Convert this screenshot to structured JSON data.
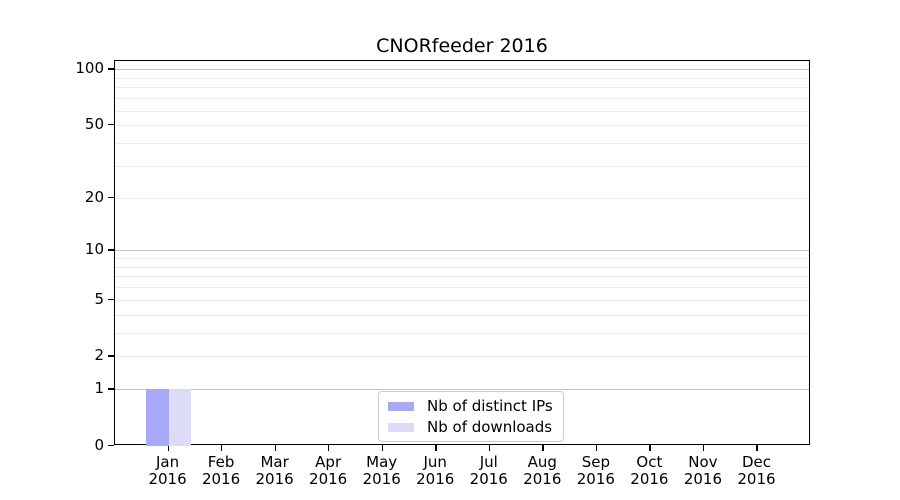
{
  "title": "CNORfeeder 2016",
  "chart_data": {
    "type": "bar",
    "title": "CNORfeeder 2016",
    "xlabel": "",
    "ylabel": "",
    "categories": [
      {
        "month": "Jan",
        "year": "2016"
      },
      {
        "month": "Feb",
        "year": "2016"
      },
      {
        "month": "Mar",
        "year": "2016"
      },
      {
        "month": "Apr",
        "year": "2016"
      },
      {
        "month": "May",
        "year": "2016"
      },
      {
        "month": "Jun",
        "year": "2016"
      },
      {
        "month": "Jul",
        "year": "2016"
      },
      {
        "month": "Aug",
        "year": "2016"
      },
      {
        "month": "Sep",
        "year": "2016"
      },
      {
        "month": "Oct",
        "year": "2016"
      },
      {
        "month": "Nov",
        "year": "2016"
      },
      {
        "month": "Dec",
        "year": "2016"
      }
    ],
    "series": [
      {
        "name": "Nb of distinct IPs",
        "color": "#a8a8f8",
        "values": [
          1,
          0,
          0,
          0,
          0,
          0,
          0,
          0,
          0,
          0,
          0,
          0
        ]
      },
      {
        "name": "Nb of downloads",
        "color": "#dcdcf8",
        "values": [
          1,
          0,
          0,
          0,
          0,
          0,
          0,
          0,
          0,
          0,
          0,
          0
        ]
      }
    ],
    "yscale": "log1p",
    "ylim": [
      0,
      111
    ],
    "y_ticks": [
      0,
      1,
      2,
      5,
      10,
      20,
      50,
      100
    ],
    "y_major_gridlines": [
      1,
      10,
      100
    ],
    "y_minor_gridlines": [
      2,
      3,
      4,
      5,
      6,
      7,
      8,
      9,
      20,
      30,
      40,
      50,
      60,
      70,
      80,
      90
    ],
    "grid": "horizontal",
    "grid_major_color": "#c2c2c2",
    "grid_minor_color": "#ececec",
    "legend_position": "inside lower center"
  }
}
